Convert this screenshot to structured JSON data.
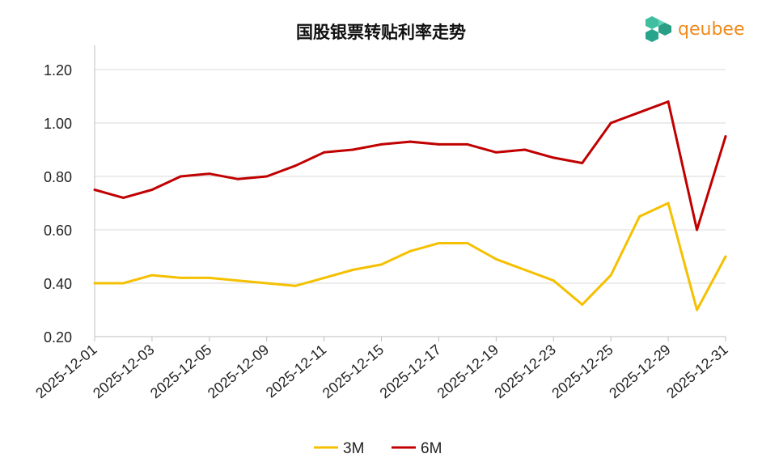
{
  "chart_data": {
    "type": "line",
    "title": "国股银票转贴利率走势",
    "xlabel": "",
    "ylabel": "",
    "ylim": [
      0.2,
      1.2
    ],
    "yticks": [
      "0.20",
      "0.40",
      "0.60",
      "0.80",
      "1.00",
      "1.20"
    ],
    "x": [
      "2025-12-01",
      "2025-12-02",
      "2025-12-03",
      "2025-12-04",
      "2025-12-05",
      "2025-12-08",
      "2025-12-09",
      "2025-12-10",
      "2025-12-11",
      "2025-12-12",
      "2025-12-15",
      "2025-12-16",
      "2025-12-17",
      "2025-12-18",
      "2025-12-19",
      "2025-12-22",
      "2025-12-23",
      "2025-12-24",
      "2025-12-25",
      "2025-12-26",
      "2025-12-29",
      "2025-12-30",
      "2025-12-31"
    ],
    "xtick_labels": [
      "2025-12-01",
      "2025-12-03",
      "2025-12-05",
      "2025-12-09",
      "2025-12-11",
      "2025-12-15",
      "2025-12-17",
      "2025-12-19",
      "2025-12-23",
      "2025-12-25",
      "2025-12-29",
      "2025-12-31"
    ],
    "grid": true,
    "legend_position": "bottom",
    "series": [
      {
        "name": "3M",
        "color": "#f5c000",
        "values": [
          0.4,
          0.4,
          0.43,
          0.42,
          0.42,
          0.41,
          0.4,
          0.39,
          0.42,
          0.45,
          0.47,
          0.52,
          0.55,
          0.55,
          0.49,
          0.45,
          0.41,
          0.32,
          0.43,
          0.65,
          0.7,
          0.3,
          0.5
        ]
      },
      {
        "name": "6M",
        "color": "#c00000",
        "values": [
          0.75,
          0.72,
          0.75,
          0.8,
          0.81,
          0.79,
          0.8,
          0.84,
          0.89,
          0.9,
          0.92,
          0.93,
          0.92,
          0.92,
          0.89,
          0.9,
          0.87,
          0.85,
          1.0,
          1.04,
          1.08,
          0.6,
          0.95
        ]
      }
    ]
  },
  "logo": {
    "text": "qeubee"
  }
}
